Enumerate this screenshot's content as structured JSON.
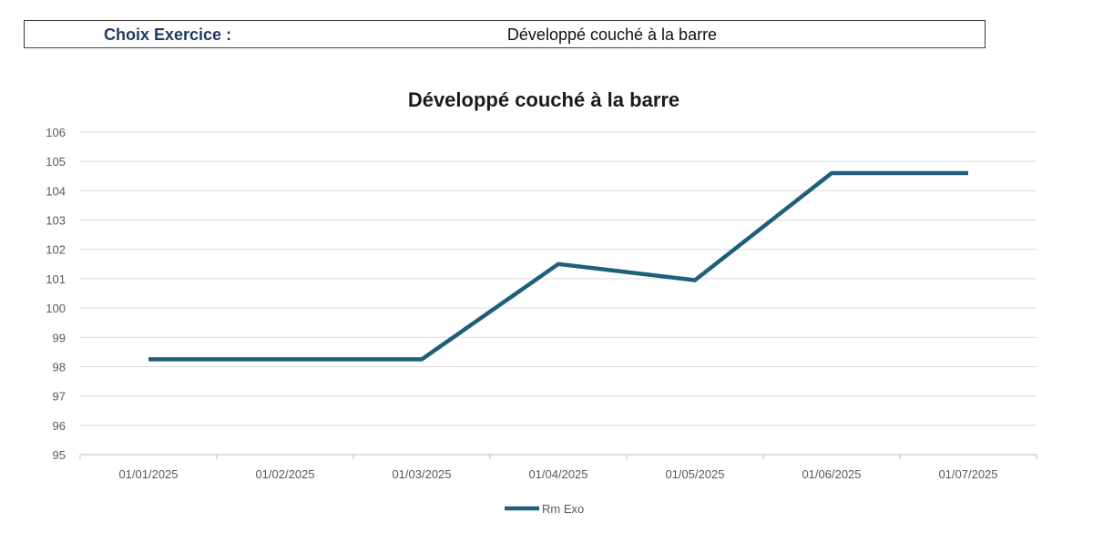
{
  "header": {
    "label": "Choix Exercice :",
    "value": "Développé couché à la barre"
  },
  "colors": {
    "series": "#1f5f7a",
    "grid": "#d9d9d9",
    "axis_text": "#595959",
    "title": "#1a1a1a"
  },
  "chart_data": {
    "type": "line",
    "title": "Développé couché à la barre",
    "xlabel": "",
    "ylabel": "",
    "categories": [
      "01/01/2025",
      "01/02/2025",
      "01/03/2025",
      "01/04/2025",
      "01/05/2025",
      "01/06/2025",
      "01/07/2025"
    ],
    "series": [
      {
        "name": "Rm Exo",
        "values": [
          98.25,
          98.25,
          98.25,
          101.5,
          100.95,
          104.6,
          104.6
        ]
      }
    ],
    "ylim": [
      95,
      106
    ],
    "yticks": [
      "95",
      "96",
      "97",
      "98",
      "99",
      "100",
      "101",
      "102",
      "103",
      "104",
      "105",
      "106"
    ],
    "grid": true,
    "legend_position": "bottom"
  }
}
